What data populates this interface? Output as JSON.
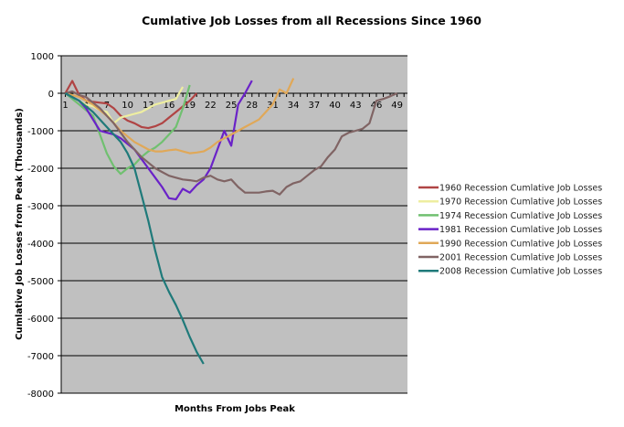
{
  "chart_data": {
    "type": "line",
    "title": "Cumlative Job Losses from all Recessions Since 1960",
    "xlabel": "Months From Jobs Peak",
    "ylabel": "Cumlative Job Losses from Peak (Thousands)",
    "ylim": [
      -8000,
      1000
    ],
    "yticks": [
      1000,
      0,
      -1000,
      -2000,
      -3000,
      -4000,
      -5000,
      -6000,
      -7000,
      -8000
    ],
    "xlim": [
      0.4,
      50.5
    ],
    "xticks": [
      1,
      4,
      7,
      10,
      13,
      16,
      19,
      22,
      25,
      28,
      31,
      34,
      37,
      40,
      43,
      46,
      49
    ],
    "grid": true,
    "legend_position": "right",
    "series": [
      {
        "name": "1960 Recession Cumlative Job Losses",
        "color": "#b04444",
        "x": [
          1,
          2,
          3,
          4,
          5,
          6,
          7,
          8,
          9,
          10,
          11,
          12,
          13,
          14,
          15,
          16,
          17,
          18,
          19,
          20
        ],
        "y": [
          0,
          330,
          -50,
          -200,
          -230,
          -250,
          -270,
          -400,
          -600,
          -730,
          -800,
          -900,
          -930,
          -880,
          -800,
          -650,
          -500,
          -350,
          -200,
          0
        ]
      },
      {
        "name": "1970 Recession Cumlative Job Losses",
        "color": "#eeeea0",
        "x": [
          1,
          2,
          3,
          4,
          5,
          6,
          7,
          8,
          9,
          10,
          11,
          12,
          13,
          14,
          15,
          16,
          17,
          18
        ],
        "y": [
          0,
          -100,
          -200,
          -300,
          -350,
          -450,
          -500,
          -800,
          -650,
          -600,
          -550,
          -500,
          -400,
          -300,
          -250,
          -200,
          -150,
          170
        ]
      },
      {
        "name": "1974 Recession Cumlative Job Losses",
        "color": "#70c070",
        "x": [
          1,
          2,
          3,
          4,
          5,
          6,
          7,
          8,
          9,
          10,
          11,
          12,
          13,
          14,
          15,
          16,
          17,
          18,
          19
        ],
        "y": [
          0,
          -150,
          -300,
          -450,
          -600,
          -1100,
          -1600,
          -1950,
          -2150,
          -2000,
          -1900,
          -1700,
          -1550,
          -1450,
          -1300,
          -1100,
          -900,
          -400,
          220
        ]
      },
      {
        "name": "1981 Recession Cumlative Job Losses",
        "color": "#6a22c8",
        "x": [
          1,
          2,
          3,
          4,
          5,
          6,
          7,
          8,
          9,
          10,
          11,
          12,
          13,
          14,
          15,
          16,
          17,
          18,
          19,
          20,
          21,
          22,
          23,
          24,
          25,
          26,
          27,
          28
        ],
        "y": [
          0,
          -100,
          -200,
          -400,
          -700,
          -1000,
          -1050,
          -1100,
          -1200,
          -1350,
          -1500,
          -1750,
          -2000,
          -2250,
          -2500,
          -2800,
          -2830,
          -2550,
          -2650,
          -2450,
          -2300,
          -2000,
          -1500,
          -1000,
          -1400,
          -300,
          0,
          340
        ]
      },
      {
        "name": "1990 Recession Cumlative Job Losses",
        "color": "#e0a858",
        "x": [
          1,
          2,
          3,
          4,
          5,
          6,
          7,
          8,
          9,
          10,
          11,
          12,
          13,
          14,
          15,
          16,
          17,
          18,
          19,
          20,
          21,
          22,
          23,
          24,
          25,
          26,
          27,
          28,
          29,
          30,
          31,
          32,
          33,
          34
        ],
        "y": [
          0,
          -50,
          -100,
          -200,
          -300,
          -450,
          -600,
          -800,
          -1000,
          -1150,
          -1300,
          -1400,
          -1500,
          -1550,
          -1550,
          -1520,
          -1500,
          -1550,
          -1600,
          -1580,
          -1550,
          -1450,
          -1300,
          -1200,
          -1100,
          -1000,
          -900,
          -800,
          -700,
          -500,
          -300,
          100,
          0,
          400
        ]
      },
      {
        "name": "2001 Recession Cumlative Job Losses",
        "color": "#806464",
        "x": [
          1,
          2,
          3,
          4,
          5,
          6,
          7,
          8,
          9,
          10,
          11,
          12,
          13,
          14,
          15,
          16,
          17,
          18,
          19,
          20,
          21,
          22,
          23,
          24,
          25,
          26,
          27,
          28,
          29,
          30,
          31,
          32,
          33,
          34,
          35,
          36,
          37,
          38,
          39,
          40,
          41,
          42,
          43,
          44,
          45,
          46,
          47,
          48,
          49
        ],
        "y": [
          0,
          50,
          -50,
          -100,
          -250,
          -400,
          -600,
          -800,
          -1050,
          -1300,
          -1500,
          -1700,
          -1850,
          -2000,
          -2100,
          -2200,
          -2250,
          -2300,
          -2320,
          -2350,
          -2250,
          -2200,
          -2300,
          -2350,
          -2300,
          -2500,
          -2650,
          -2650,
          -2650,
          -2620,
          -2600,
          -2700,
          -2500,
          -2400,
          -2350,
          -2200,
          -2050,
          -1950,
          -1700,
          -1500,
          -1150,
          -1050,
          -1000,
          -950,
          -800,
          -200,
          -150,
          -80,
          0
        ]
      },
      {
        "name": "2008 Recession Cumlative Job Losses",
        "color": "#1f7a7a",
        "x": [
          1,
          2,
          3,
          4,
          5,
          6,
          7,
          8,
          9,
          10,
          11,
          12,
          13,
          14,
          15,
          16,
          17,
          18,
          19,
          20,
          21
        ],
        "y": [
          0,
          -100,
          -200,
          -350,
          -500,
          -700,
          -900,
          -1100,
          -1300,
          -1600,
          -2000,
          -2700,
          -3400,
          -4200,
          -4900,
          -5300,
          -5650,
          -6050,
          -6500,
          -6900,
          -7220
        ]
      }
    ]
  }
}
